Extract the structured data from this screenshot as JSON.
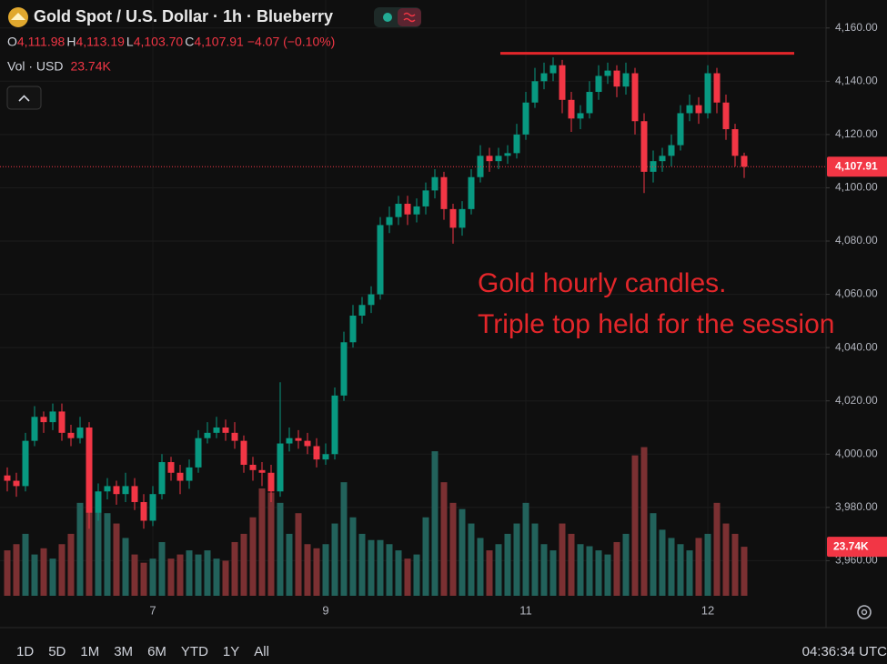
{
  "chart_data": {
    "type": "candlestick",
    "title": "Gold Spot / U.S. Dollar · 1h · Blueberry",
    "legend": {
      "ohlc": [
        {
          "key": "O",
          "value": "4,111.98"
        },
        {
          "key": "H",
          "value": "4,113.19"
        },
        {
          "key": "L",
          "value": "4,103.70"
        },
        {
          "key": "C",
          "value": "4,107.91"
        }
      ],
      "change": "−4.07 (−0.10%)",
      "volume_name": "Vol · USD",
      "volume": "23.74K"
    },
    "annotation": [
      "Gold hourly candles.",
      "Triple top held for the session"
    ],
    "resistance": {
      "value": 4150.5,
      "color": "#e3262a"
    },
    "categories": [
      null,
      null,
      null,
      null,
      null,
      null,
      null,
      null,
      null,
      null,
      null,
      null,
      null,
      null,
      null,
      null,
      "7",
      null,
      null,
      null,
      null,
      null,
      null,
      null,
      null,
      null,
      null,
      null,
      null,
      null,
      null,
      null,
      null,
      null,
      null,
      "9",
      null,
      null,
      null,
      null,
      null,
      null,
      null,
      null,
      null,
      null,
      null,
      null,
      null,
      null,
      null,
      null,
      null,
      null,
      null,
      null,
      null,
      "11",
      null,
      null,
      null,
      null,
      null,
      null,
      null,
      null,
      null,
      null,
      null,
      null,
      null,
      null,
      null,
      null,
      null,
      null,
      null,
      "12",
      null,
      null,
      null,
      null
    ],
    "open": [
      3992,
      3990,
      3988,
      4005,
      4014,
      4012,
      4016,
      4008,
      4006,
      4010,
      3978,
      3986,
      3988,
      3985,
      3988,
      3982,
      3975,
      3985,
      3997,
      3993,
      3990,
      3995,
      4006,
      4008,
      4010,
      4008,
      4005,
      3996,
      3994,
      3993,
      3986,
      4004,
      4006,
      4005,
      4003,
      3998,
      4000,
      4022,
      4042,
      4052,
      4056,
      4060,
      4086,
      4089,
      4094,
      4090,
      4093,
      4099,
      4104,
      4092,
      4085,
      4092,
      4104,
      4112,
      4110,
      4112,
      4113,
      4120,
      4132,
      4140,
      4143,
      4146,
      4133,
      4126,
      4128,
      4136,
      4142,
      4144,
      4138,
      4143,
      4125,
      4106,
      4110,
      4112,
      4116,
      4128,
      4131,
      4128,
      4143,
      4132,
      4122,
      4111.98
    ],
    "high": [
      3995,
      3993,
      4008,
      4018,
      4016,
      4019,
      4019,
      4011,
      4014,
      4012,
      3989,
      3991,
      3990,
      3993,
      3991,
      3985,
      3988,
      4000,
      3999,
      3996,
      3998,
      4009,
      4012,
      4014,
      4013,
      4012,
      4007,
      3999,
      3997,
      3996,
      4027,
      4010,
      4009,
      4008,
      4006,
      4004,
      4025,
      4046,
      4056,
      4059,
      4063,
      4089,
      4093,
      4097,
      4097,
      4096,
      4102,
      4107,
      4106,
      4094,
      4095,
      4107,
      4116,
      4115,
      4115,
      4116,
      4124,
      4136,
      4145,
      4147,
      4149,
      4148,
      4136,
      4131,
      4140,
      4146,
      4147,
      4146,
      4147,
      4145,
      4128,
      4114,
      4115,
      4120,
      4131,
      4135,
      4134,
      4146,
      4145,
      4135,
      4124,
      4113.19
    ],
    "low": [
      3986,
      3984,
      3986,
      4003,
      4008,
      4009,
      4005,
      4003,
      4004,
      3972,
      3975,
      3983,
      3981,
      3982,
      3979,
      3972,
      3973,
      3983,
      3990,
      3985,
      3987,
      3993,
      4004,
      4006,
      4005,
      4002,
      3993,
      3990,
      3988,
      3982,
      3984,
      4001,
      4002,
      4000,
      3995,
      3996,
      3998,
      4020,
      4040,
      4049,
      4053,
      4058,
      4083,
      4086,
      4086,
      4087,
      4090,
      4096,
      4088,
      4079,
      4082,
      4090,
      4102,
      4106,
      4107,
      4109,
      4111,
      4118,
      4130,
      4137,
      4140,
      4128,
      4121,
      4122,
      4126,
      4133,
      4139,
      4134,
      4135,
      4120,
      4098,
      4102,
      4106,
      4108,
      4114,
      4125,
      4124,
      4126,
      4128,
      4118,
      4108,
      4103.7
    ],
    "close": [
      3990,
      3988,
      4005,
      4014,
      4012,
      4016,
      4008,
      4006,
      4010,
      3978,
      3986,
      3988,
      3985,
      3988,
      3982,
      3975,
      3985,
      3997,
      3993,
      3990,
      3995,
      4006,
      4008,
      4010,
      4008,
      4005,
      3996,
      3994,
      3993,
      3986,
      4004,
      4006,
      4005,
      4003,
      3998,
      4000,
      4022,
      4042,
      4052,
      4056,
      4060,
      4086,
      4089,
      4094,
      4090,
      4093,
      4099,
      4104,
      4092,
      4085,
      4092,
      4104,
      4112,
      4110,
      4112,
      4113,
      4120,
      4132,
      4140,
      4143,
      4146,
      4133,
      4126,
      4128,
      4136,
      4142,
      4144,
      4138,
      4143,
      4125,
      4106,
      4110,
      4112,
      4116,
      4128,
      4131,
      4128,
      4143,
      4132,
      4122,
      4112,
      4107.91
    ],
    "volume": [
      22000,
      25000,
      30000,
      20000,
      23000,
      18000,
      25000,
      30000,
      45000,
      72000,
      48000,
      40000,
      35000,
      28000,
      20000,
      16000,
      18000,
      26000,
      18000,
      20000,
      22000,
      20000,
      22000,
      18000,
      17000,
      26000,
      30000,
      38000,
      52000,
      50000,
      45000,
      30000,
      40000,
      25000,
      23000,
      25000,
      35000,
      55000,
      38000,
      30000,
      27000,
      27000,
      25000,
      22000,
      18000,
      20000,
      38000,
      70000,
      55000,
      45000,
      42000,
      35000,
      28000,
      22000,
      25000,
      30000,
      35000,
      45000,
      35000,
      25000,
      22000,
      35000,
      30000,
      25000,
      24000,
      22000,
      20000,
      26000,
      30000,
      68000,
      72000,
      40000,
      32000,
      28000,
      25000,
      22000,
      28000,
      30000,
      45000,
      35000,
      30000,
      23740
    ],
    "volume_lim": [
      0,
      100000
    ],
    "last_price": {
      "value": 4107.91,
      "label": "4,107.91"
    },
    "ylim": [
      3947.5,
      4170.5
    ],
    "yticks": [
      {
        "value": 3960,
        "label": "3,960.00"
      },
      {
        "value": 3980,
        "label": "3,980.00"
      },
      {
        "value": 4000,
        "label": "4,000.00"
      },
      {
        "value": 4020,
        "label": "4,020.00"
      },
      {
        "value": 4040,
        "label": "4,040.00"
      },
      {
        "value": 4060,
        "label": "4,060.00"
      },
      {
        "value": 4080,
        "label": "4,080.00"
      },
      {
        "value": 4100,
        "label": "4,100.00"
      },
      {
        "value": 4120,
        "label": "4,120.00"
      },
      {
        "value": 4140,
        "label": "4,140.00"
      },
      {
        "value": 4160,
        "label": "4,160.00"
      }
    ],
    "grid": true,
    "up_color": "#089981",
    "down_color": "#f23645",
    "volume_up_color": "#22625b",
    "volume_down_color": "#7b3032"
  },
  "toolbar": {
    "ranges": [
      "1D",
      "5D",
      "1M",
      "3M",
      "6M",
      "YTD",
      "1Y",
      "All"
    ],
    "clock": "04:36:34 UTC"
  }
}
